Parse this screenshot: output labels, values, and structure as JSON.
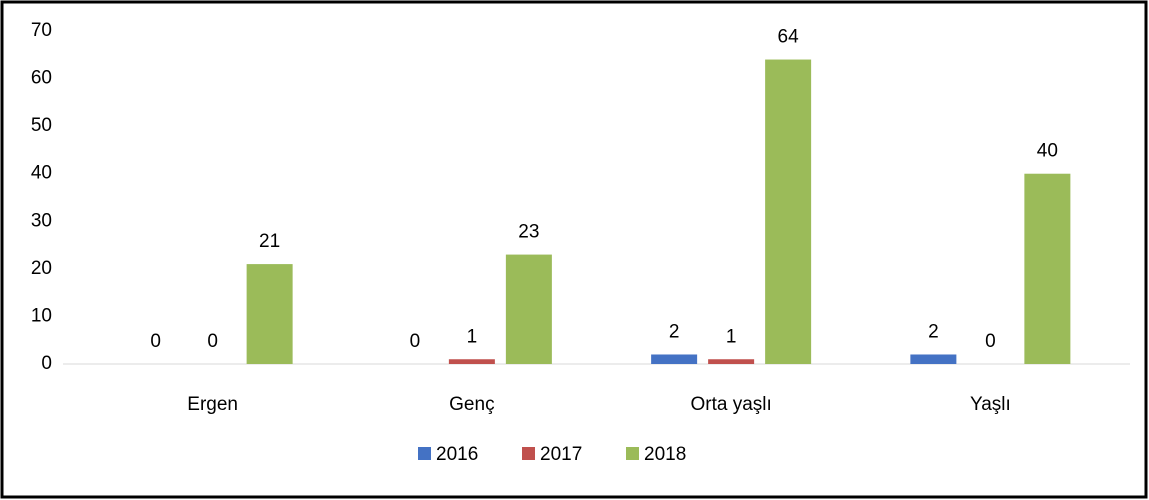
{
  "chart_data": {
    "type": "bar",
    "categories": [
      "Ergen",
      "Genç",
      "Orta yaşlı",
      "Yaşlı"
    ],
    "series": [
      {
        "name": "2016",
        "color": "#4472c4",
        "values": [
          0,
          0,
          2,
          2
        ]
      },
      {
        "name": "2017",
        "color": "#c0504d",
        "values": [
          0,
          1,
          1,
          0
        ]
      },
      {
        "name": "2018",
        "color": "#9bbb59",
        "values": [
          21,
          23,
          64,
          40
        ]
      }
    ],
    "ylim": [
      0,
      70
    ],
    "yticks": [
      0,
      10,
      20,
      30,
      40,
      50,
      60,
      70
    ],
    "grid": false,
    "legend": "bottom",
    "data_labels": true
  }
}
